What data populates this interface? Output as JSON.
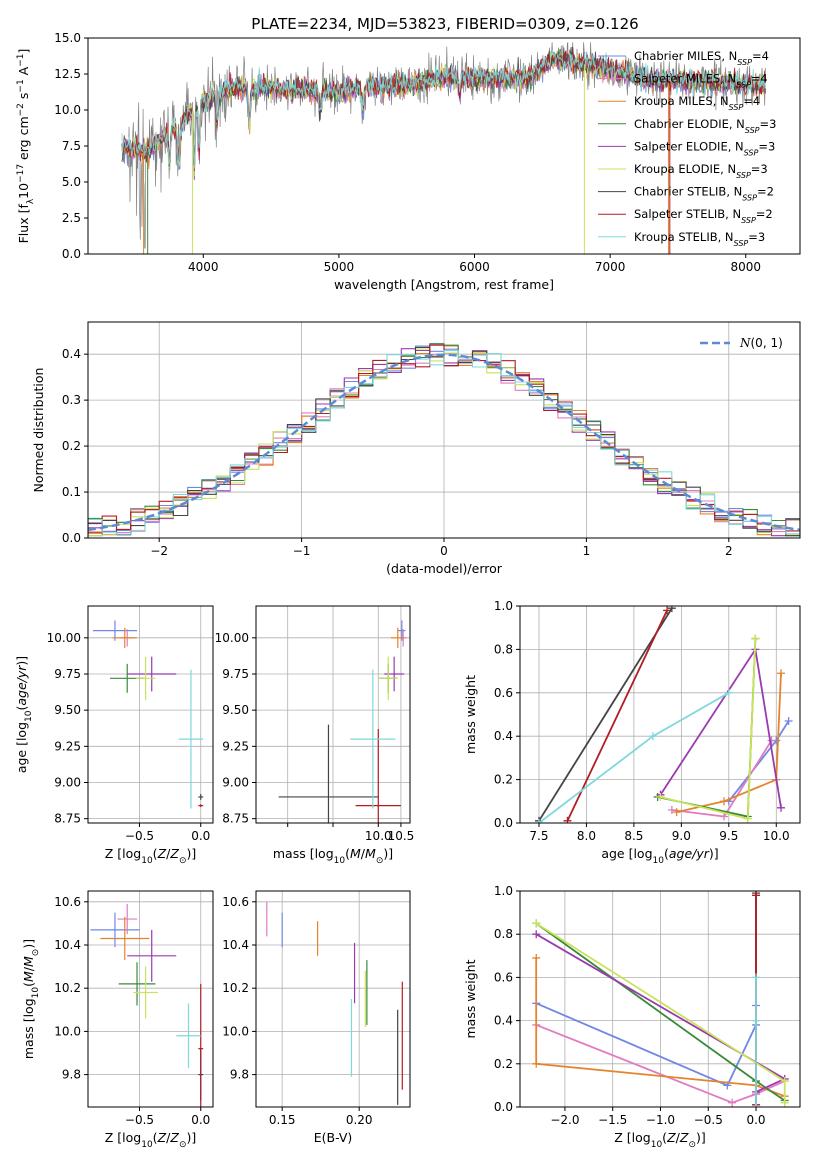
{
  "figure_title": "PLATE=2234, MJD=53823, FIBERID=0309, z=0.126",
  "models": [
    {
      "name": "Chabrier MILES",
      "n": "4",
      "color": "#6f87e6"
    },
    {
      "name": "Salpeter MILES",
      "n": "4",
      "color": "#e07cc0"
    },
    {
      "name": "Kroupa MILES",
      "n": "4",
      "color": "#e5842f"
    },
    {
      "name": "Chabrier ELODIE",
      "n": "3",
      "color": "#3a8a3a"
    },
    {
      "name": "Salpeter ELODIE",
      "n": "3",
      "color": "#9a3ab0"
    },
    {
      "name": "Kroupa ELODIE",
      "n": "3",
      "color": "#c9e35a"
    },
    {
      "name": "Chabrier STELIB",
      "n": "2",
      "color": "#444444"
    },
    {
      "name": "Salpeter STELIB",
      "n": "2",
      "color": "#b01e24"
    },
    {
      "name": "Kroupa STELIB",
      "n": "3",
      "color": "#7fd8dc"
    }
  ],
  "colors": {
    "data": "#808080",
    "gauss": "#5b8bd6",
    "grid": "#b0b0b0"
  },
  "chart_data": [
    {
      "id": "spectrum",
      "type": "line",
      "xlabel": "wavelength [Angstrom, rest frame]",
      "ylabel": "Flux [f_λ 10^-17 erg cm^-2 s^-1 A^-1]",
      "xlim": [
        3150,
        8400
      ],
      "ylim": [
        0,
        15
      ],
      "xticks": [
        4000,
        5000,
        6000,
        7000,
        8000
      ],
      "yticks": [
        0.0,
        2.5,
        5.0,
        7.5,
        10.0,
        12.5,
        15.0
      ],
      "continuum": [
        [
          3400,
          7.4
        ],
        [
          3600,
          7.1
        ],
        [
          3800,
          9.0
        ],
        [
          4000,
          10.5
        ],
        [
          4200,
          11.5
        ],
        [
          4400,
          11.6
        ],
        [
          4600,
          11.4
        ],
        [
          4800,
          11.4
        ],
        [
          5000,
          11.2
        ],
        [
          5200,
          11.7
        ],
        [
          5400,
          11.6
        ],
        [
          5600,
          11.9
        ],
        [
          5800,
          12.3
        ],
        [
          6000,
          12.2
        ],
        [
          6200,
          12.2
        ],
        [
          6400,
          12.3
        ],
        [
          6600,
          13.6
        ],
        [
          6800,
          13.2
        ],
        [
          7000,
          12.8
        ],
        [
          7200,
          12.3
        ],
        [
          7400,
          12.0
        ],
        [
          7700,
          12.0
        ],
        [
          8000,
          11.8
        ],
        [
          8150,
          11.7
        ]
      ],
      "grid": false,
      "legend": "upper right"
    },
    {
      "id": "residuals",
      "type": "step",
      "xlabel": "(data-model)/error",
      "ylabel": "Normed distribution",
      "xlim": [
        -2.5,
        2.5
      ],
      "ylim": [
        0,
        0.47
      ],
      "xticks": [
        -2,
        -1,
        0,
        1,
        2
      ],
      "yticks": [
        0.0,
        0.1,
        0.2,
        0.3,
        0.4
      ],
      "gaussian_label": "N(0,1)",
      "bin_width": 0.1,
      "grid": true,
      "legend": "upper right"
    },
    {
      "id": "age_vs_Z",
      "type": "errorbar",
      "xlabel": "Z [log10(Z/Z_sun)]",
      "ylabel": "age [log10(age/yr)]",
      "xlim": [
        -0.92,
        0.1
      ],
      "ylim": [
        8.72,
        10.22
      ],
      "xticks": [
        -0.5,
        0.0
      ],
      "yticks": [
        8.75,
        9.0,
        9.25,
        9.5,
        9.75,
        10.0
      ],
      "points": [
        {
          "x": -0.7,
          "xerr": 0.18,
          "y": 10.05,
          "yerr": 0.07
        },
        {
          "x": -0.6,
          "xerr": 0.06,
          "y": 10.0,
          "yerr": 0.06
        },
        {
          "x": -0.62,
          "xerr": 0.1,
          "y": 10.0,
          "yerr": 0.07
        },
        {
          "x": -0.6,
          "xerr": 0.14,
          "y": 9.72,
          "yerr": 0.1
        },
        {
          "x": -0.4,
          "xerr": 0.2,
          "y": 9.75,
          "yerr": 0.12
        },
        {
          "x": -0.45,
          "xerr": 0.08,
          "y": 9.72,
          "yerr": 0.15
        },
        {
          "x": 0.0,
          "xerr": 0.02,
          "y": 8.9,
          "yerr": 0.02
        },
        {
          "x": 0.0,
          "xerr": 0.02,
          "y": 8.84,
          "yerr": 0.01
        },
        {
          "x": -0.08,
          "xerr": 0.1,
          "y": 9.3,
          "yerr": 0.48
        }
      ]
    },
    {
      "id": "age_vs_mass",
      "type": "errorbar",
      "xlabel": "mass [log10(M/M_sun)]",
      "ylabel": "",
      "xlim": [
        7.3,
        10.7
      ],
      "ylim": [
        8.72,
        10.22
      ],
      "xticks": [
        8.0,
        9.0,
        10.0,
        10.5
      ],
      "xticklabels": [
        "",
        "",
        "10.0",
        "10.5"
      ],
      "yticks": [
        8.75,
        9.0,
        9.25,
        9.5,
        9.75,
        10.0
      ],
      "points": [
        {
          "x": 10.52,
          "xerr": 0.08,
          "y": 10.05,
          "yerr": 0.07
        },
        {
          "x": 10.55,
          "xerr": 0.08,
          "y": 10.0,
          "yerr": 0.06
        },
        {
          "x": 10.43,
          "xerr": 0.15,
          "y": 10.0,
          "yerr": 0.07
        },
        {
          "x": 10.22,
          "xerr": 0.2,
          "y": 9.72,
          "yerr": 0.1
        },
        {
          "x": 10.35,
          "xerr": 0.22,
          "y": 9.75,
          "yerr": 0.12
        },
        {
          "x": 10.22,
          "xerr": 0.2,
          "y": 9.72,
          "yerr": 0.15
        },
        {
          "x": 8.9,
          "xerr": 1.1,
          "y": 8.9,
          "yerr": 0.5
        },
        {
          "x": 10.0,
          "xerr": 0.5,
          "y": 8.84,
          "yerr": 0.53
        },
        {
          "x": 9.88,
          "xerr": 0.5,
          "y": 9.3,
          "yerr": 0.48
        }
      ]
    },
    {
      "id": "weight_vs_age",
      "type": "line",
      "xlabel": "age [log10(age/yr)]",
      "ylabel": "mass weight",
      "xlim": [
        7.3,
        10.25
      ],
      "ylim": [
        0,
        1
      ],
      "xticks": [
        7.5,
        8.0,
        8.5,
        9.0,
        9.5,
        10.0
      ],
      "yticks": [
        0.0,
        0.2,
        0.4,
        0.6,
        0.8,
        1.0
      ],
      "series": [
        {
          "model": 0,
          "x": [
            9.5,
            10.0,
            10.13
          ],
          "y": [
            0.1,
            0.38,
            0.47
          ]
        },
        {
          "model": 1,
          "x": [
            8.9,
            9.45,
            9.95
          ],
          "y": [
            0.06,
            0.03,
            0.38
          ]
        },
        {
          "model": 2,
          "x": [
            8.95,
            9.45,
            10.0,
            10.05
          ],
          "y": [
            0.05,
            0.1,
            0.2,
            0.69
          ]
        },
        {
          "model": 3,
          "x": [
            8.75,
            9.7,
            9.78
          ],
          "y": [
            0.12,
            0.03,
            0.85
          ]
        },
        {
          "model": 4,
          "x": [
            8.78,
            9.78,
            10.05
          ],
          "y": [
            0.13,
            0.8,
            0.07
          ]
        },
        {
          "model": 5,
          "x": [
            8.78,
            9.7,
            9.78
          ],
          "y": [
            0.12,
            0.02,
            0.85
          ]
        },
        {
          "model": 6,
          "x": [
            7.5,
            8.9
          ],
          "y": [
            0.01,
            0.99
          ]
        },
        {
          "model": 7,
          "x": [
            7.8,
            8.85
          ],
          "y": [
            0.01,
            0.98
          ]
        },
        {
          "model": 8,
          "x": [
            7.5,
            8.7,
            9.5
          ],
          "y": [
            0.0,
            0.4,
            0.6
          ]
        }
      ]
    },
    {
      "id": "mass_vs_Z",
      "type": "errorbar",
      "xlabel": "Z [log10(Z/Z_sun)]",
      "ylabel": "mass [log10(M/M_sun)]",
      "xlim": [
        -0.92,
        0.1
      ],
      "ylim": [
        9.65,
        10.65
      ],
      "xticks": [
        -0.5,
        0.0
      ],
      "yticks": [
        9.8,
        10.0,
        10.2,
        10.4,
        10.6
      ],
      "points": [
        {
          "x": -0.7,
          "xerr": 0.2,
          "y": 10.47,
          "yerr": 0.08
        },
        {
          "x": -0.6,
          "xerr": 0.08,
          "y": 10.52,
          "yerr": 0.07
        },
        {
          "x": -0.62,
          "xerr": 0.2,
          "y": 10.43,
          "yerr": 0.1
        },
        {
          "x": -0.52,
          "xerr": 0.15,
          "y": 10.22,
          "yerr": 0.1
        },
        {
          "x": -0.4,
          "xerr": 0.2,
          "y": 10.35,
          "yerr": 0.12
        },
        {
          "x": -0.45,
          "xerr": 0.1,
          "y": 10.18,
          "yerr": 0.12
        },
        {
          "x": 0.0,
          "xerr": 0.02,
          "y": 9.8,
          "yerr": 0.12
        },
        {
          "x": 0.0,
          "xerr": 0.02,
          "y": 9.92,
          "yerr": 0.3
        },
        {
          "x": -0.1,
          "xerr": 0.1,
          "y": 9.98,
          "yerr": 0.15
        }
      ]
    },
    {
      "id": "mass_vs_EBV",
      "type": "errorbar",
      "xlabel": "E(B-V)",
      "ylabel": "",
      "xlim": [
        0.133,
        0.233
      ],
      "ylim": [
        9.65,
        10.65
      ],
      "xticks": [
        0.15,
        0.2
      ],
      "yticks": [
        9.8,
        10.0,
        10.2,
        10.4,
        10.6
      ],
      "points": [
        {
          "x": 0.15,
          "xerr": 0,
          "y": 10.47,
          "yerr": 0.08
        },
        {
          "x": 0.14,
          "xerr": 0,
          "y": 10.52,
          "yerr": 0.08
        },
        {
          "x": 0.173,
          "xerr": 0,
          "y": 10.43,
          "yerr": 0.08
        },
        {
          "x": 0.205,
          "xerr": 0,
          "y": 10.18,
          "yerr": 0.15
        },
        {
          "x": 0.197,
          "xerr": 0,
          "y": 10.27,
          "yerr": 0.14
        },
        {
          "x": 0.204,
          "xerr": 0,
          "y": 10.15,
          "yerr": 0.13
        },
        {
          "x": 0.225,
          "xerr": 0,
          "y": 9.88,
          "yerr": 0.22
        },
        {
          "x": 0.228,
          "xerr": 0,
          "y": 9.98,
          "yerr": 0.25
        },
        {
          "x": 0.195,
          "xerr": 0,
          "y": 9.97,
          "yerr": 0.18
        }
      ]
    },
    {
      "id": "weight_vs_Z",
      "type": "line",
      "xlabel": "Z [log10(Z/Z_sun)]",
      "ylabel": "mass weight",
      "xlim": [
        -2.47,
        0.46
      ],
      "ylim": [
        0,
        1
      ],
      "xticks": [
        -2.0,
        -1.5,
        -1.0,
        -0.5,
        0.0
      ],
      "yticks": [
        0.0,
        0.2,
        0.4,
        0.6,
        0.8,
        1.0
      ],
      "series": [
        {
          "model": 0,
          "x": [
            -2.3,
            -0.3,
            0.0,
            0.0
          ],
          "y": [
            0.48,
            0.1,
            0.38,
            0.47
          ]
        },
        {
          "model": 1,
          "x": [
            -2.3,
            -0.25,
            0.0,
            0.3
          ],
          "y": [
            0.38,
            0.02,
            0.06,
            0.12
          ]
        },
        {
          "model": 2,
          "x": [
            -2.3,
            -2.3,
            0.0,
            0.3
          ],
          "y": [
            0.69,
            0.2,
            0.1,
            0.05
          ]
        },
        {
          "model": 3,
          "x": [
            -2.3,
            0.0,
            0.3
          ],
          "y": [
            0.85,
            0.12,
            0.03
          ]
        },
        {
          "model": 4,
          "x": [
            -2.3,
            0.3,
            0.0
          ],
          "y": [
            0.8,
            0.13,
            0.07
          ]
        },
        {
          "model": 5,
          "x": [
            -2.3,
            0.3,
            0.3
          ],
          "y": [
            0.85,
            0.12,
            0.02
          ]
        },
        {
          "model": 6,
          "x": [
            0.0,
            0.0
          ],
          "y": [
            0.01,
            0.99
          ]
        },
        {
          "model": 7,
          "x": [
            0.0,
            0.0
          ],
          "y": [
            0.01,
            0.98
          ]
        },
        {
          "model": 8,
          "x": [
            0.0,
            0.0,
            0.0
          ],
          "y": [
            0.0,
            0.4,
            0.6
          ]
        }
      ]
    }
  ]
}
